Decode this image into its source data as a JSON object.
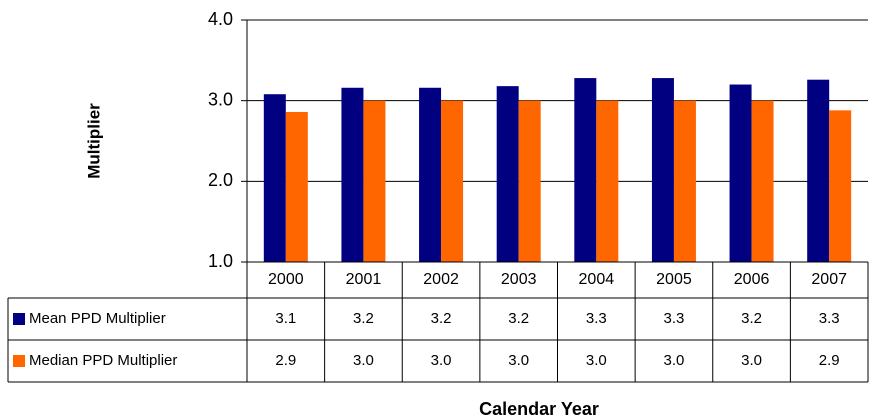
{
  "chart_data": {
    "type": "bar",
    "y_label": "Multiplier",
    "x_label": "Calendar Year",
    "categories": [
      "2000",
      "2001",
      "2002",
      "2003",
      "2004",
      "2005",
      "2006",
      "2007"
    ],
    "series": [
      {
        "name": "Mean PPD Multiplier",
        "color": "#000080",
        "values": [
          3.08,
          3.16,
          3.16,
          3.18,
          3.28,
          3.28,
          3.2,
          3.26
        ],
        "value_labels": [
          "3.1",
          "3.2",
          "3.2",
          "3.2",
          "3.3",
          "3.3",
          "3.2",
          "3.3"
        ]
      },
      {
        "name": "Median PPD Multiplier",
        "color": "#ff6600",
        "values": [
          2.86,
          3.0,
          3.0,
          3.0,
          3.0,
          3.0,
          3.0,
          2.88
        ],
        "value_labels": [
          "2.9",
          "3.0",
          "3.0",
          "3.0",
          "3.0",
          "3.0",
          "3.0",
          "2.9"
        ]
      }
    ],
    "ylim": [
      1.0,
      4.0
    ],
    "yticks": [
      {
        "value": 1,
        "label": "1.0"
      },
      {
        "value": 2,
        "label": "2.0"
      },
      {
        "value": 3,
        "label": "3.0"
      },
      {
        "value": 4,
        "label": "4.0"
      }
    ],
    "grid": true
  }
}
